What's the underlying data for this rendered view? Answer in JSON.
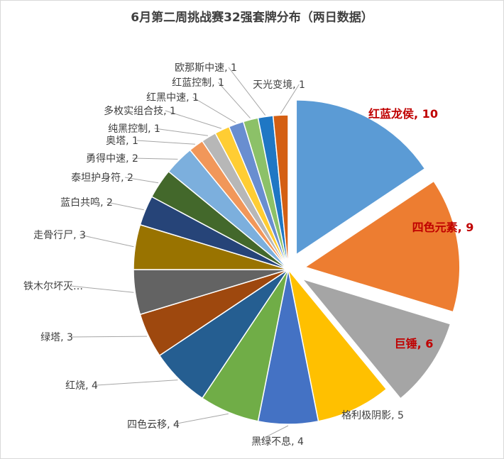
{
  "chart_data": {
    "type": "pie",
    "title": "6月第二周挑战赛32强套牌分布（两日数据）",
    "slices": [
      {
        "label": "红蓝龙侯",
        "value": 10,
        "color": "#5b9bd5",
        "exploded": true,
        "highlight": true
      },
      {
        "label": "四色元素",
        "value": 9,
        "color": "#ed7d31",
        "exploded": true,
        "highlight": true
      },
      {
        "label": "巨锤",
        "value": 6,
        "color": "#a5a5a5",
        "exploded": true,
        "highlight": true
      },
      {
        "label": "格利极阴影",
        "value": 5,
        "color": "#ffc000"
      },
      {
        "label": "黑绿不息",
        "value": 4,
        "color": "#4472c4"
      },
      {
        "label": "四色云移",
        "value": 4,
        "color": "#70ad47"
      },
      {
        "label": "红烧",
        "value": 4,
        "color": "#255e91"
      },
      {
        "label": "绿塔",
        "value": 3,
        "color": "#9e480e"
      },
      {
        "label": "铁木尔坏灭…",
        "value": 3,
        "color": "#636363",
        "hide_value": true
      },
      {
        "label": "走骨行尸",
        "value": 3,
        "color": "#997300"
      },
      {
        "label": "蓝白共鸣",
        "value": 2,
        "color": "#264478"
      },
      {
        "label": "泰坦护身符",
        "value": 2,
        "color": "#43682b"
      },
      {
        "label": "勇得中速",
        "value": 2,
        "color": "#7cafdd"
      },
      {
        "label": "奥塔",
        "value": 1,
        "color": "#f1975a"
      },
      {
        "label": "纯黑控制",
        "value": 1,
        "color": "#b7b7b7"
      },
      {
        "label": "多枚实组合技",
        "value": 1,
        "color": "#ffcd33"
      },
      {
        "label": "红黑中速",
        "value": 1,
        "color": "#698ed0"
      },
      {
        "label": "红蓝控制",
        "value": 1,
        "color": "#8cc168"
      },
      {
        "label": "欧那斯中速",
        "value": 1,
        "color": "#1f77c4"
      },
      {
        "label": "天光变境",
        "value": 1,
        "color": "#d45f13"
      }
    ],
    "label_separator": ", ",
    "highlight_label_color": "#c00000",
    "label_color": "#404040"
  }
}
